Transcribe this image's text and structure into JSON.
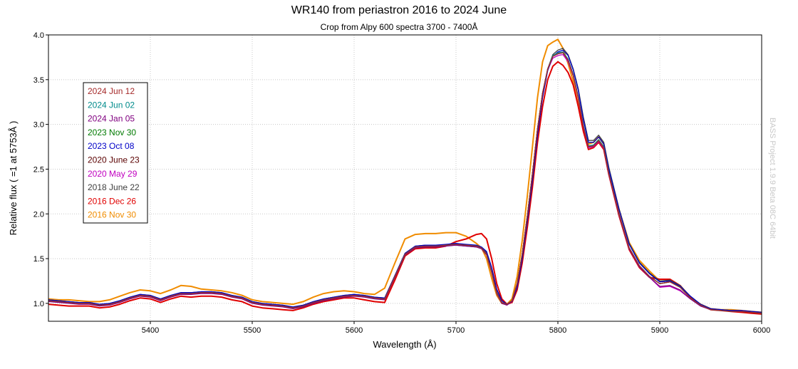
{
  "chart_data": {
    "type": "line",
    "title": "WR140 from periastron 2016 to 2024 June",
    "subtitle": "Crop from Alpy 600 spectra 3700 - 7400Å",
    "xlabel": "Wavelength (Å)",
    "ylabel": "Relative flux ( =1 at 5753Å )",
    "xlim": [
      5300,
      6000
    ],
    "ylim": [
      0.8,
      4.0
    ],
    "x_ticks": [
      5400,
      5500,
      5600,
      5700,
      5800,
      5900,
      6000
    ],
    "y_ticks": [
      1.0,
      1.5,
      2.0,
      2.5,
      3.0,
      3.5,
      4.0
    ],
    "x_tick_labels": [
      "5400",
      "5500",
      "5600",
      "5700",
      "5800",
      "5900",
      "6000"
    ],
    "y_tick_labels": [
      "1.0",
      "1.5",
      "2.0",
      "2.5",
      "3.0",
      "3.5",
      "4.0"
    ],
    "grid": true,
    "legend_position": "left",
    "watermark": "BASS Project 1.9.9 Beta 08C 64bit",
    "x": [
      5300,
      5310,
      5320,
      5330,
      5340,
      5350,
      5360,
      5370,
      5380,
      5390,
      5400,
      5410,
      5420,
      5430,
      5440,
      5450,
      5460,
      5470,
      5480,
      5490,
      5500,
      5510,
      5520,
      5530,
      5540,
      5550,
      5560,
      5570,
      5580,
      5590,
      5600,
      5610,
      5620,
      5630,
      5640,
      5650,
      5660,
      5670,
      5680,
      5690,
      5700,
      5710,
      5720,
      5725,
      5730,
      5735,
      5740,
      5745,
      5750,
      5755,
      5760,
      5765,
      5770,
      5775,
      5780,
      5785,
      5790,
      5795,
      5800,
      5805,
      5810,
      5815,
      5820,
      5825,
      5830,
      5835,
      5840,
      5845,
      5850,
      5860,
      5870,
      5880,
      5890,
      5900,
      5910,
      5920,
      5930,
      5940,
      5950,
      5960,
      5970,
      5980,
      5990,
      6000
    ],
    "series": [
      {
        "name": "2024 Jun 12",
        "color": "#a52a2a",
        "values": [
          1.03,
          1.02,
          1.01,
          1.0,
          1.0,
          0.98,
          0.99,
          1.02,
          1.06,
          1.09,
          1.08,
          1.04,
          1.08,
          1.11,
          1.11,
          1.12,
          1.12,
          1.11,
          1.08,
          1.06,
          1.01,
          0.99,
          0.98,
          0.97,
          0.95,
          0.97,
          1.01,
          1.04,
          1.06,
          1.08,
          1.09,
          1.08,
          1.06,
          1.05,
          1.3,
          1.55,
          1.63,
          1.64,
          1.64,
          1.65,
          1.66,
          1.65,
          1.64,
          1.62,
          1.55,
          1.35,
          1.12,
          1.01,
          0.99,
          1.03,
          1.22,
          1.55,
          1.98,
          2.45,
          2.95,
          3.35,
          3.62,
          3.76,
          3.79,
          3.8,
          3.72,
          3.55,
          3.3,
          2.98,
          2.75,
          2.76,
          2.82,
          2.74,
          2.45,
          2.0,
          1.62,
          1.42,
          1.3,
          1.22,
          1.24,
          1.18,
          1.06,
          0.98,
          0.93,
          0.92,
          0.91,
          0.91,
          0.9,
          0.89
        ]
      },
      {
        "name": "2024 Jun 02",
        "color": "#008b8b",
        "values": [
          1.03,
          1.02,
          1.01,
          1.0,
          1.0,
          0.98,
          0.99,
          1.02,
          1.06,
          1.09,
          1.08,
          1.04,
          1.08,
          1.11,
          1.11,
          1.12,
          1.12,
          1.11,
          1.08,
          1.06,
          1.01,
          0.99,
          0.98,
          0.97,
          0.95,
          0.97,
          1.01,
          1.04,
          1.06,
          1.08,
          1.09,
          1.08,
          1.06,
          1.05,
          1.3,
          1.55,
          1.63,
          1.64,
          1.64,
          1.65,
          1.66,
          1.65,
          1.64,
          1.62,
          1.55,
          1.35,
          1.12,
          1.01,
          0.99,
          1.03,
          1.22,
          1.55,
          1.98,
          2.45,
          2.95,
          3.35,
          3.62,
          3.77,
          3.8,
          3.81,
          3.73,
          3.56,
          3.31,
          2.99,
          2.76,
          2.77,
          2.83,
          2.75,
          2.46,
          2.0,
          1.62,
          1.42,
          1.3,
          1.22,
          1.24,
          1.18,
          1.06,
          0.98,
          0.93,
          0.92,
          0.91,
          0.91,
          0.9,
          0.89
        ]
      },
      {
        "name": "2024 Jan 05",
        "color": "#800080",
        "values": [
          1.02,
          1.01,
          1.0,
          0.99,
          0.99,
          0.97,
          0.98,
          1.01,
          1.05,
          1.08,
          1.07,
          1.03,
          1.07,
          1.1,
          1.1,
          1.11,
          1.11,
          1.1,
          1.07,
          1.05,
          1.0,
          0.98,
          0.97,
          0.96,
          0.94,
          0.96,
          1.0,
          1.03,
          1.05,
          1.07,
          1.08,
          1.07,
          1.05,
          1.04,
          1.29,
          1.54,
          1.62,
          1.63,
          1.63,
          1.64,
          1.65,
          1.64,
          1.63,
          1.61,
          1.54,
          1.34,
          1.11,
          1.0,
          0.98,
          1.02,
          1.21,
          1.54,
          1.97,
          2.44,
          2.94,
          3.34,
          3.61,
          3.76,
          3.79,
          3.8,
          3.72,
          3.55,
          3.3,
          2.98,
          2.75,
          2.76,
          2.82,
          2.74,
          2.45,
          1.99,
          1.61,
          1.41,
          1.29,
          1.19,
          1.2,
          1.15,
          1.05,
          0.97,
          0.93,
          0.92,
          0.91,
          0.91,
          0.9,
          0.89
        ]
      },
      {
        "name": "2023 Nov 30",
        "color": "#007a00",
        "values": [
          1.03,
          1.02,
          1.01,
          1.0,
          1.0,
          0.98,
          0.99,
          1.02,
          1.06,
          1.09,
          1.08,
          1.04,
          1.08,
          1.11,
          1.11,
          1.12,
          1.12,
          1.11,
          1.08,
          1.06,
          1.01,
          0.99,
          0.98,
          0.97,
          0.95,
          0.97,
          1.01,
          1.04,
          1.06,
          1.08,
          1.09,
          1.08,
          1.06,
          1.05,
          1.3,
          1.55,
          1.63,
          1.64,
          1.64,
          1.65,
          1.66,
          1.65,
          1.64,
          1.62,
          1.55,
          1.35,
          1.12,
          1.01,
          0.99,
          1.03,
          1.22,
          1.55,
          1.98,
          2.45,
          2.95,
          3.35,
          3.62,
          3.76,
          3.79,
          3.8,
          3.72,
          3.55,
          3.3,
          2.98,
          2.75,
          2.76,
          2.82,
          2.74,
          2.45,
          2.0,
          1.62,
          1.42,
          1.3,
          1.22,
          1.24,
          1.18,
          1.06,
          0.98,
          0.93,
          0.92,
          0.91,
          0.91,
          0.9,
          0.89
        ]
      },
      {
        "name": "2023 Oct 08",
        "color": "#0000c8",
        "values": [
          1.04,
          1.03,
          1.02,
          1.01,
          1.01,
          0.99,
          1.0,
          1.03,
          1.07,
          1.1,
          1.09,
          1.05,
          1.09,
          1.12,
          1.12,
          1.13,
          1.13,
          1.12,
          1.09,
          1.07,
          1.02,
          1.0,
          0.99,
          0.98,
          0.96,
          0.98,
          1.02,
          1.05,
          1.07,
          1.09,
          1.1,
          1.09,
          1.07,
          1.06,
          1.31,
          1.56,
          1.64,
          1.65,
          1.65,
          1.66,
          1.67,
          1.66,
          1.65,
          1.63,
          1.58,
          1.4,
          1.16,
          1.03,
          0.99,
          1.02,
          1.18,
          1.5,
          1.92,
          2.38,
          2.88,
          3.3,
          3.6,
          3.76,
          3.81,
          3.83,
          3.77,
          3.61,
          3.38,
          3.05,
          2.8,
          2.8,
          2.86,
          2.78,
          2.5,
          2.05,
          1.66,
          1.45,
          1.33,
          1.24,
          1.25,
          1.19,
          1.08,
          0.99,
          0.94,
          0.93,
          0.92,
          0.92,
          0.91,
          0.9
        ]
      },
      {
        "name": "2020 June 23",
        "color": "#5a0000",
        "values": [
          1.03,
          1.02,
          1.01,
          1.0,
          1.0,
          0.98,
          0.99,
          1.02,
          1.06,
          1.09,
          1.08,
          1.04,
          1.08,
          1.11,
          1.11,
          1.12,
          1.12,
          1.11,
          1.08,
          1.06,
          1.01,
          0.99,
          0.98,
          0.97,
          0.95,
          0.97,
          1.01,
          1.04,
          1.06,
          1.08,
          1.09,
          1.08,
          1.06,
          1.05,
          1.3,
          1.55,
          1.63,
          1.64,
          1.64,
          1.65,
          1.66,
          1.65,
          1.64,
          1.62,
          1.55,
          1.35,
          1.12,
          1.01,
          0.99,
          1.03,
          1.22,
          1.55,
          1.98,
          2.45,
          2.95,
          3.35,
          3.62,
          3.76,
          3.79,
          3.8,
          3.72,
          3.55,
          3.3,
          2.98,
          2.75,
          2.76,
          2.82,
          2.74,
          2.45,
          2.0,
          1.62,
          1.42,
          1.3,
          1.22,
          1.24,
          1.18,
          1.06,
          0.98,
          0.93,
          0.92,
          0.91,
          0.91,
          0.9,
          0.89
        ]
      },
      {
        "name": "2020 May 29",
        "color": "#c000c0",
        "values": [
          1.03,
          1.02,
          1.01,
          1.0,
          1.0,
          0.98,
          0.99,
          1.02,
          1.06,
          1.09,
          1.08,
          1.04,
          1.08,
          1.11,
          1.11,
          1.12,
          1.12,
          1.11,
          1.08,
          1.06,
          1.01,
          0.99,
          0.98,
          0.97,
          0.95,
          0.97,
          1.01,
          1.04,
          1.06,
          1.08,
          1.09,
          1.08,
          1.06,
          1.05,
          1.3,
          1.55,
          1.63,
          1.64,
          1.64,
          1.65,
          1.66,
          1.65,
          1.64,
          1.62,
          1.55,
          1.35,
          1.12,
          1.01,
          0.99,
          1.03,
          1.22,
          1.55,
          1.98,
          2.45,
          2.95,
          3.35,
          3.61,
          3.74,
          3.77,
          3.78,
          3.7,
          3.54,
          3.29,
          2.97,
          2.74,
          2.75,
          2.81,
          2.73,
          2.44,
          1.99,
          1.61,
          1.41,
          1.29,
          1.18,
          1.19,
          1.14,
          1.05,
          0.97,
          0.93,
          0.92,
          0.91,
          0.91,
          0.9,
          0.89
        ]
      },
      {
        "name": "2018 June 22",
        "color": "#404040",
        "values": [
          1.04,
          1.03,
          1.02,
          1.01,
          1.01,
          0.99,
          1.0,
          1.03,
          1.07,
          1.1,
          1.09,
          1.05,
          1.09,
          1.12,
          1.12,
          1.13,
          1.13,
          1.12,
          1.09,
          1.07,
          1.02,
          1.0,
          0.99,
          0.98,
          0.96,
          0.98,
          1.02,
          1.05,
          1.07,
          1.09,
          1.1,
          1.09,
          1.07,
          1.06,
          1.31,
          1.56,
          1.64,
          1.65,
          1.65,
          1.65,
          1.65,
          1.64,
          1.63,
          1.62,
          1.57,
          1.4,
          1.15,
          1.03,
          0.99,
          1.02,
          1.18,
          1.5,
          1.92,
          2.38,
          2.9,
          3.32,
          3.62,
          3.78,
          3.83,
          3.85,
          3.78,
          3.62,
          3.4,
          3.08,
          2.82,
          2.82,
          2.88,
          2.8,
          2.52,
          2.06,
          1.67,
          1.46,
          1.34,
          1.25,
          1.26,
          1.2,
          1.08,
          0.99,
          0.94,
          0.93,
          0.92,
          0.92,
          0.91,
          0.9
        ]
      },
      {
        "name": "2016 Dec 26",
        "color": "#e00000",
        "values": [
          0.99,
          0.98,
          0.97,
          0.97,
          0.97,
          0.95,
          0.96,
          0.99,
          1.03,
          1.06,
          1.05,
          1.01,
          1.05,
          1.08,
          1.07,
          1.08,
          1.08,
          1.07,
          1.04,
          1.02,
          0.97,
          0.95,
          0.94,
          0.93,
          0.92,
          0.95,
          0.99,
          1.02,
          1.04,
          1.06,
          1.06,
          1.04,
          1.02,
          1.01,
          1.26,
          1.53,
          1.61,
          1.62,
          1.62,
          1.64,
          1.69,
          1.72,
          1.77,
          1.78,
          1.72,
          1.5,
          1.22,
          1.05,
          0.99,
          1.01,
          1.15,
          1.45,
          1.85,
          2.3,
          2.8,
          3.2,
          3.5,
          3.65,
          3.7,
          3.66,
          3.58,
          3.44,
          3.2,
          2.92,
          2.72,
          2.74,
          2.8,
          2.72,
          2.44,
          1.98,
          1.6,
          1.4,
          1.29,
          1.27,
          1.27,
          1.2,
          1.07,
          0.98,
          0.93,
          0.92,
          0.91,
          0.9,
          0.89,
          0.88
        ]
      },
      {
        "name": "2016 Nov 30",
        "color": "#f08c00",
        "values": [
          1.05,
          1.04,
          1.04,
          1.03,
          1.02,
          1.02,
          1.04,
          1.08,
          1.12,
          1.15,
          1.14,
          1.11,
          1.15,
          1.2,
          1.19,
          1.16,
          1.15,
          1.14,
          1.12,
          1.09,
          1.04,
          1.02,
          1.01,
          1.0,
          0.99,
          1.02,
          1.07,
          1.11,
          1.13,
          1.14,
          1.13,
          1.11,
          1.1,
          1.17,
          1.45,
          1.72,
          1.77,
          1.78,
          1.78,
          1.79,
          1.79,
          1.75,
          1.67,
          1.62,
          1.5,
          1.28,
          1.09,
          1.0,
          0.99,
          1.05,
          1.3,
          1.7,
          2.2,
          2.75,
          3.3,
          3.7,
          3.88,
          3.92,
          3.95,
          3.85,
          3.68,
          3.48,
          3.22,
          2.95,
          2.78,
          2.8,
          2.86,
          2.78,
          2.5,
          2.05,
          1.68,
          1.48,
          1.36,
          1.25,
          1.25,
          1.19,
          1.07,
          0.99,
          0.94,
          0.93,
          0.93,
          0.92,
          0.91,
          0.9
        ]
      }
    ]
  }
}
